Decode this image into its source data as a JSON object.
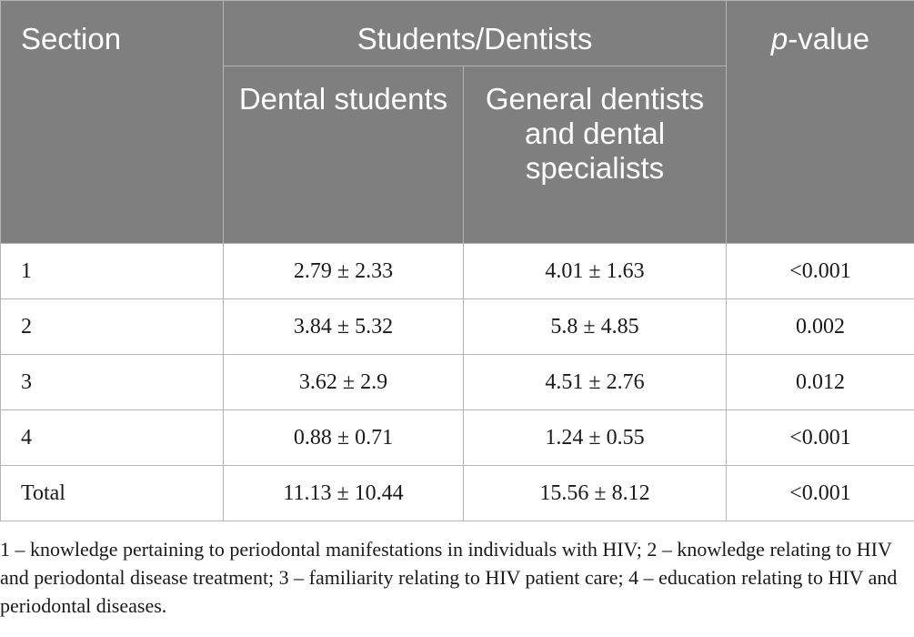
{
  "table": {
    "header": {
      "section": "Section",
      "group": "Students/Dentists",
      "pvalue_italic": "p",
      "pvalue_rest": "-value",
      "sub_students": "Dental students",
      "sub_dentists": "General dentists and dental specialists"
    },
    "rows": [
      {
        "section": "1",
        "students": "2.79 ± 2.33",
        "dentists": "4.01 ± 1.63",
        "p": "<0.001"
      },
      {
        "section": "2",
        "students": "3.84 ± 5.32",
        "dentists": "5.8 ± 4.85",
        "p": "0.002"
      },
      {
        "section": "3",
        "students": "3.62 ± 2.9",
        "dentists": "4.51 ± 2.76",
        "p": "0.012"
      },
      {
        "section": "4",
        "students": "0.88 ± 0.71",
        "dentists": "1.24 ± 0.55",
        "p": "<0.001"
      },
      {
        "section": "Total",
        "students": "11.13 ± 10.44",
        "dentists": "15.56 ± 8.12",
        "p": "<0.001"
      }
    ]
  },
  "footnote": "1 – knowledge pertaining to periodontal manifestations in individuals with HIV; 2 – knowledge relating to HIV and periodontal disease treatment; 3 – familiarity relating to HIV patient care; 4 – education relating to HIV and periodontal diseases.",
  "colors": {
    "header_bg": "#7f7f7f",
    "header_text": "#ffffff",
    "border": "#b4b4b4"
  }
}
